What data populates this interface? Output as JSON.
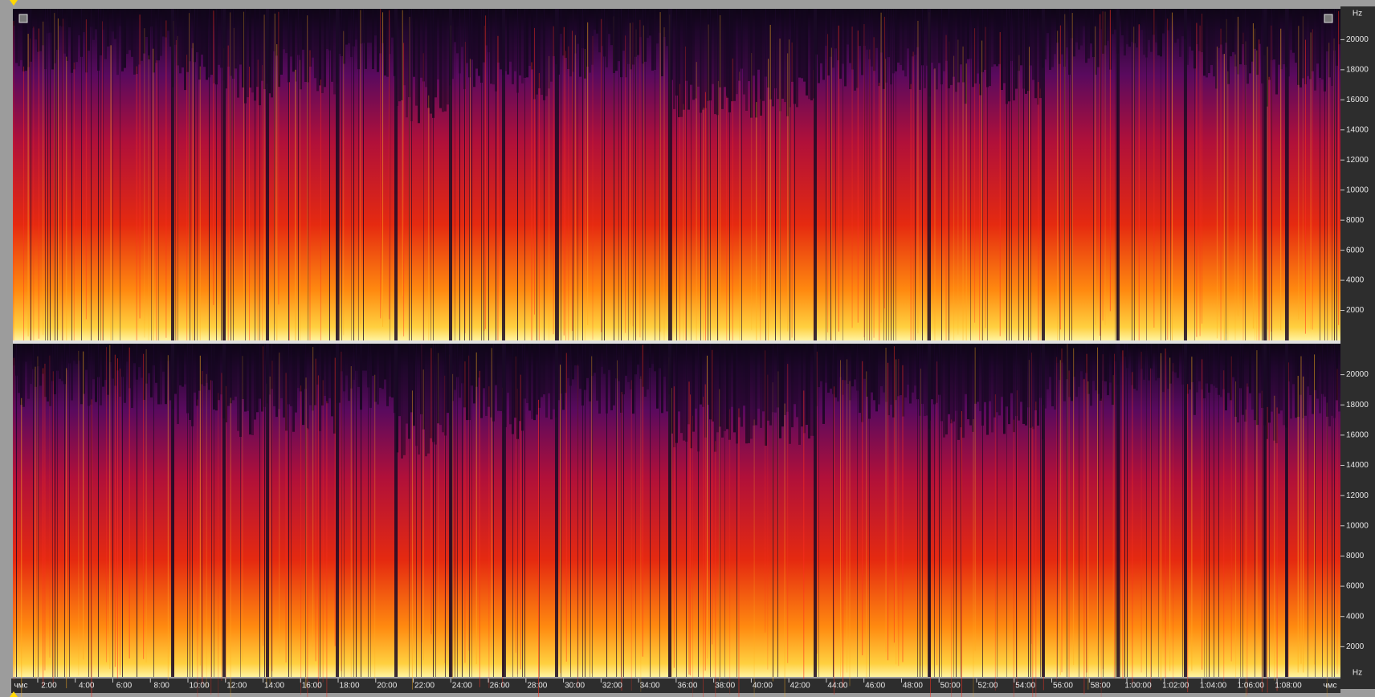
{
  "time_ruler": {
    "start_unit": "чмс",
    "end_unit": "чмс",
    "ticks": [
      "2:00",
      "4:00",
      "6:00",
      "8:00",
      "10:00",
      "12:00",
      "14:00",
      "16:00",
      "18:00",
      "20:00",
      "22:00",
      "24:00",
      "26:00",
      "28:00",
      "30:00",
      "32:00",
      "34:00",
      "36:00",
      "38:00",
      "40:00",
      "42:00",
      "44:00",
      "46:00",
      "48:00",
      "50:00",
      "52:00",
      "54:00",
      "56:00",
      "58:00",
      "1:00:00",
      "1:02:00",
      "1:04:00",
      "1:06:00",
      "1:08:00"
    ]
  },
  "frequency_ruler": {
    "unit_top": "Hz",
    "unit_bottom": "Hz",
    "channels": [
      {
        "ticks": [
          2000,
          4000,
          6000,
          8000,
          10000,
          12000,
          14000,
          16000,
          18000,
          20000
        ]
      },
      {
        "ticks": [
          2000,
          4000,
          6000,
          8000,
          10000,
          12000,
          14000,
          16000,
          18000,
          20000
        ]
      }
    ]
  }
}
